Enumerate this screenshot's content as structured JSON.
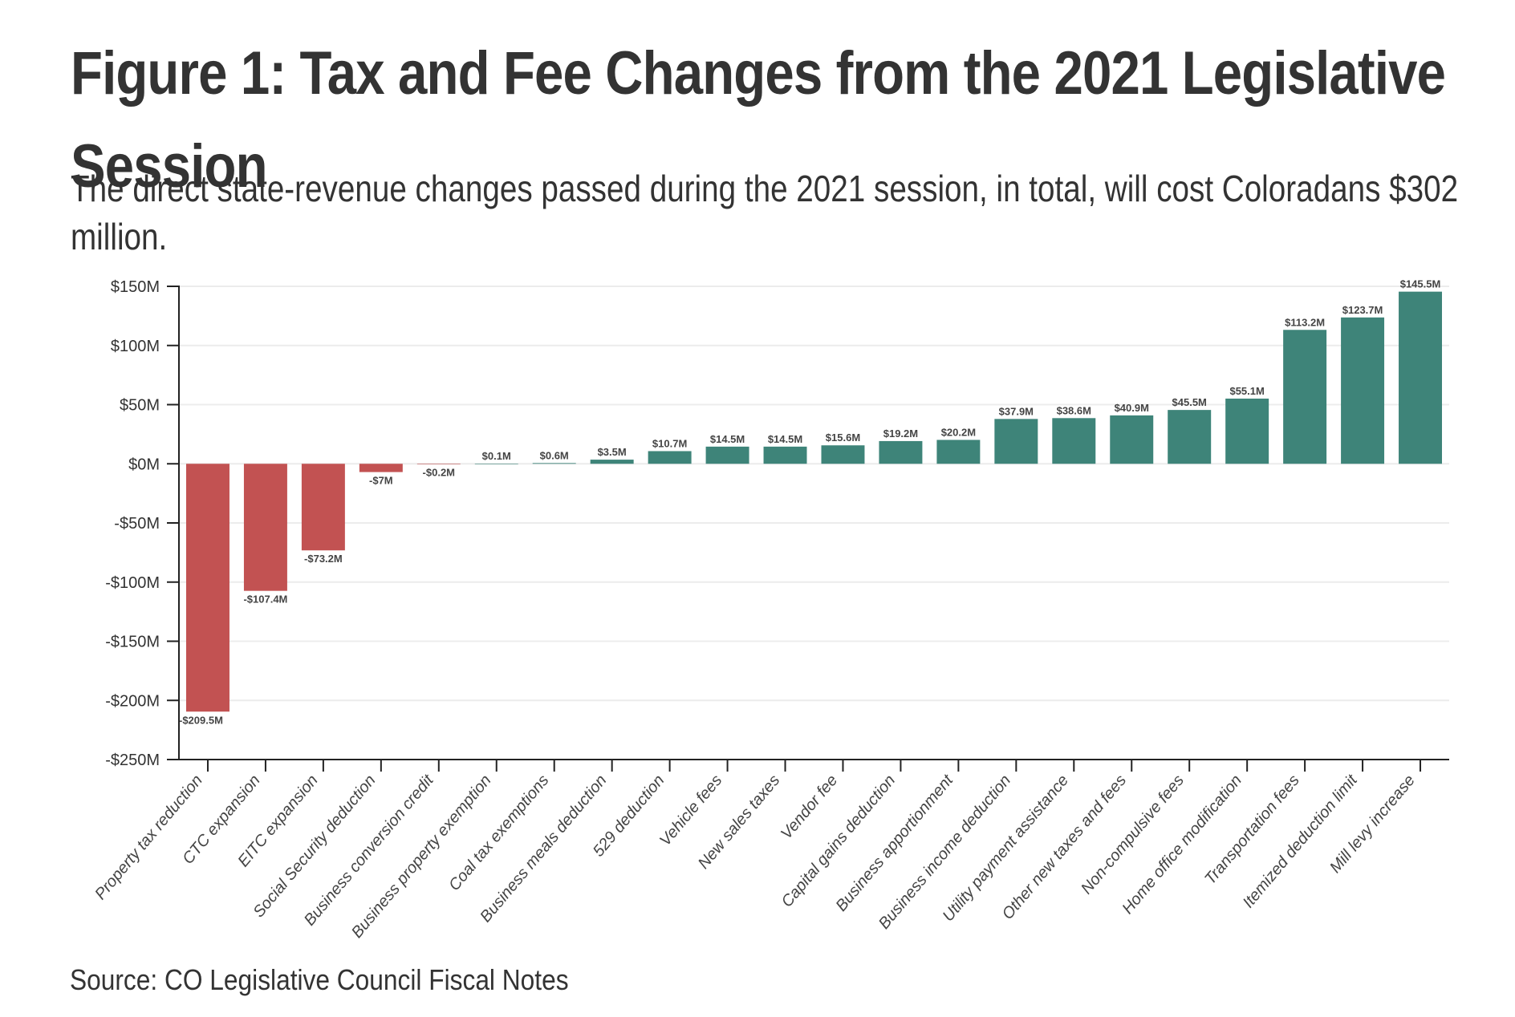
{
  "header": {
    "title": "Figure 1: Tax and Fee Changes from the 2021 Legislative Session",
    "subtitle": "The direct state-revenue changes passed during the 2021 session, in total, will cost Coloradans $302 million.",
    "source": "Source: CO Legislative Council Fiscal Notes"
  },
  "colors": {
    "negative": "#c25252",
    "positive": "#3e8479",
    "gridline": "#ececec",
    "axis": "#222222"
  },
  "chart_data": {
    "type": "bar",
    "title": "Figure 1: Tax and Fee Changes from the 2021 Legislative Session",
    "subtitle": "The direct state-revenue changes passed during the 2021 session, in total, will cost Coloradans $302 million.",
    "xlabel": "",
    "ylabel": "",
    "ylim": [
      -250,
      150
    ],
    "yticks": [
      150,
      100,
      50,
      0,
      -50,
      -100,
      -150,
      -200,
      -250
    ],
    "ytick_labels": [
      "$150M",
      "$100M",
      "$50M",
      "$0M",
      "-$50M",
      "-$100M",
      "-$150M",
      "-$200M",
      "-$250M"
    ],
    "grid": true,
    "legend": "none",
    "units": "millions of dollars",
    "categories": [
      "Property tax reduction",
      "CTC expansion",
      "EITC expansion",
      "Social Security deduction",
      "Business conversion credit",
      "Business property exemption",
      "Coal tax exemptions",
      "Business meals deduction",
      "529 deduction",
      "Vehicle fees",
      "New sales taxes",
      "Vendor fee",
      "Capital gains deduction",
      "Business apportionment",
      "Business income deduction",
      "Utility payment assistance",
      "Other new taxes and fees",
      "Non-compulsive fees",
      "Home office modification",
      "Transportation fees",
      "Itemized deduction limit",
      "Mill levy increase"
    ],
    "values": [
      -209.5,
      -107.4,
      -73.2,
      -7,
      -0.2,
      0.1,
      0.6,
      3.5,
      10.7,
      14.5,
      14.5,
      15.6,
      19.2,
      20.2,
      37.9,
      38.6,
      40.9,
      45.5,
      55.1,
      113.2,
      123.7,
      145.5
    ],
    "data_labels": [
      "-$209.5M",
      "-$107.4M",
      "-$73.2M",
      "-$7M",
      "-$0.2M",
      "$0.1M",
      "$0.6M",
      "$3.5M",
      "$10.7M",
      "$14.5M",
      "$14.5M",
      "$15.6M",
      "$19.2M",
      "$20.2M",
      "$37.9M",
      "$38.6M",
      "$40.9M",
      "$45.5M",
      "$55.1M",
      "$113.2M",
      "$123.7M",
      "$145.5M"
    ],
    "source": "Source: CO Legislative Council Fiscal Notes"
  }
}
